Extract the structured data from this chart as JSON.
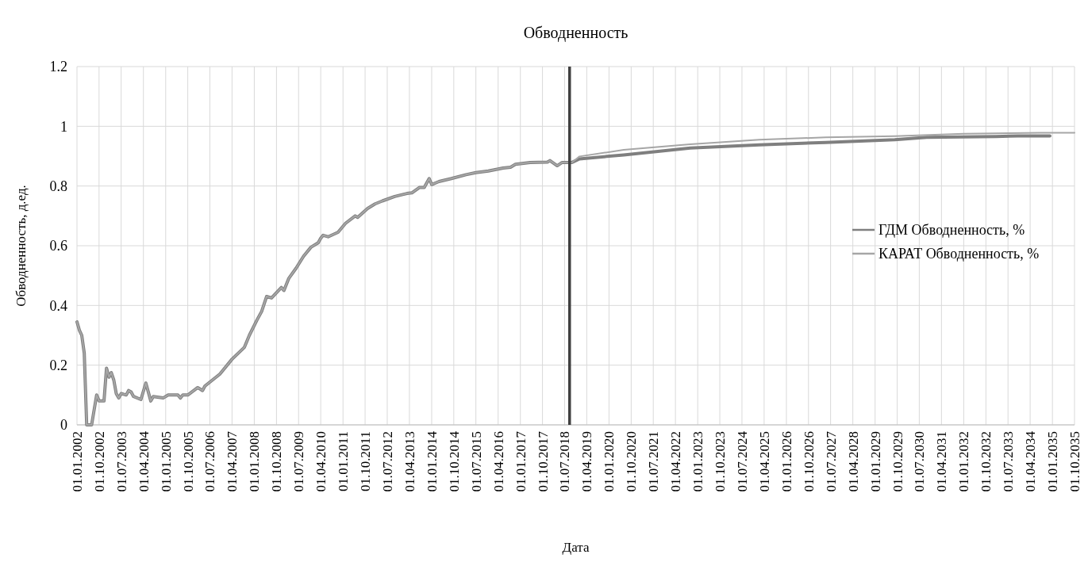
{
  "chart_data": {
    "type": "line",
    "title": "Обводненность",
    "xlabel": "Дата",
    "ylabel": "Обводненность, д.ед.",
    "xlim": [
      "2002-01",
      "2035-10"
    ],
    "xticks": [
      {
        "value": "2002-01",
        "label": "01.01.2002"
      },
      {
        "value": "2002-10",
        "label": "01.10.2002"
      },
      {
        "value": "2003-07",
        "label": "01.07.2003"
      },
      {
        "value": "2004-04",
        "label": "01.04.2004"
      },
      {
        "value": "2005-01",
        "label": "01.01.2005"
      },
      {
        "value": "2005-10",
        "label": "01.10.2005"
      },
      {
        "value": "2006-07",
        "label": "01.07.2006"
      },
      {
        "value": "2007-04",
        "label": "01.04.2007"
      },
      {
        "value": "2008-01",
        "label": "01.01.2008"
      },
      {
        "value": "2008-10",
        "label": "01.10.2008"
      },
      {
        "value": "2009-07",
        "label": "01.07.2009"
      },
      {
        "value": "2010-04",
        "label": "01.04.2010"
      },
      {
        "value": "2011-01",
        "label": "01.01.2011"
      },
      {
        "value": "2011-10",
        "label": "01.10.2011"
      },
      {
        "value": "2012-07",
        "label": "01.07.2012"
      },
      {
        "value": "2013-04",
        "label": "01.04.2013"
      },
      {
        "value": "2014-01",
        "label": "01.01.2014"
      },
      {
        "value": "2014-10",
        "label": "01.10.2014"
      },
      {
        "value": "2015-07",
        "label": "01.07.2015"
      },
      {
        "value": "2016-04",
        "label": "01.04.2016"
      },
      {
        "value": "2017-01",
        "label": "01.01.2017"
      },
      {
        "value": "2017-10",
        "label": "01.10.2017"
      },
      {
        "value": "2018-07",
        "label": "01.07.2018"
      },
      {
        "value": "2019-04",
        "label": "01.04.2019"
      },
      {
        "value": "2020-01",
        "label": "01.01.2020"
      },
      {
        "value": "2020-10",
        "label": "01.10.2020"
      },
      {
        "value": "2021-07",
        "label": "01.07.2021"
      },
      {
        "value": "2022-04",
        "label": "01.04.2022"
      },
      {
        "value": "2023-01",
        "label": "01.01.2023"
      },
      {
        "value": "2023-10",
        "label": "01.10.2023"
      },
      {
        "value": "2024-07",
        "label": "01.07.2024"
      },
      {
        "value": "2025-04",
        "label": "01.04.2025"
      },
      {
        "value": "2026-01",
        "label": "01.01.2026"
      },
      {
        "value": "2026-10",
        "label": "01.10.2026"
      },
      {
        "value": "2027-07",
        "label": "01.07.2027"
      },
      {
        "value": "2028-04",
        "label": "01.04.2028"
      },
      {
        "value": "2029-01",
        "label": "01.01.2029"
      },
      {
        "value": "2029-10",
        "label": "01.10.2029"
      },
      {
        "value": "2030-07",
        "label": "01.07.2030"
      },
      {
        "value": "2031-04",
        "label": "01.04.2031"
      },
      {
        "value": "2032-01",
        "label": "01.01.2032"
      },
      {
        "value": "2032-10",
        "label": "01.10.2032"
      },
      {
        "value": "2033-07",
        "label": "01.07.2033"
      },
      {
        "value": "2034-04",
        "label": "01.04.2034"
      },
      {
        "value": "2035-01",
        "label": "01.01.2035"
      },
      {
        "value": "2035-10",
        "label": "01.10.2035"
      }
    ],
    "ylim": [
      0,
      1.2
    ],
    "yticks": [
      0,
      0.2,
      0.4,
      0.6,
      0.8,
      1,
      1.2
    ],
    "grid": true,
    "legend": "right",
    "ref_lines": [
      {
        "axis": "x",
        "value": "2018-09",
        "color": "#404040"
      }
    ],
    "series": [
      {
        "name": "ГДМ Обводненность, %",
        "color": "#7f7f7f",
        "x": [
          "2002-01",
          "2002-02",
          "2002-03",
          "2002-04",
          "2002-05",
          "2002-07",
          "2002-09",
          "2002-10",
          "2002-12",
          "2003-01",
          "2003-02",
          "2003-03",
          "2003-04",
          "2003-05",
          "2003-06",
          "2003-07",
          "2003-09",
          "2003-10",
          "2003-11",
          "2003-12",
          "2004-03",
          "2004-05",
          "2004-07",
          "2004-08",
          "2004-12",
          "2005-02",
          "2005-06",
          "2005-07",
          "2005-08",
          "2005-10",
          "2006-02",
          "2006-04",
          "2006-05",
          "2006-11",
          "2007-04",
          "2007-09",
          "2007-11",
          "2008-02",
          "2008-04",
          "2008-06",
          "2008-08",
          "2008-12",
          "2009-01",
          "2009-03",
          "2009-06",
          "2009-09",
          "2009-12",
          "2010-03",
          "2010-04",
          "2010-05",
          "2010-07",
          "2010-11",
          "2011-02",
          "2011-06",
          "2011-07",
          "2011-11",
          "2012-02",
          "2012-05",
          "2012-10",
          "2013-03",
          "2013-05",
          "2013-08",
          "2013-10",
          "2013-12",
          "2014-01",
          "2014-04",
          "2014-09",
          "2015-03",
          "2015-07",
          "2015-12",
          "2016-06",
          "2016-09",
          "2016-11",
          "2017-05",
          "2017-12",
          "2018-01",
          "2018-04",
          "2018-06",
          "2018-10",
          "2019-01",
          "2020-07",
          "2022-10",
          "2025-02",
          "2027-05",
          "2029-09",
          "2030-10",
          "2033-02",
          "2033-11",
          "2034-12"
        ],
        "values": [
          0.345,
          0.316,
          0.3,
          0.24,
          0,
          0,
          0.1,
          0.08,
          0.08,
          0.19,
          0.16,
          0.175,
          0.15,
          0.105,
          0.09,
          0.105,
          0.1,
          0.115,
          0.11,
          0.095,
          0.085,
          0.14,
          0.08,
          0.095,
          0.09,
          0.1,
          0.1,
          0.09,
          0.1,
          0.1,
          0.125,
          0.115,
          0.13,
          0.17,
          0.22,
          0.26,
          0.3,
          0.35,
          0.38,
          0.43,
          0.425,
          0.46,
          0.45,
          0.49,
          0.525,
          0.565,
          0.595,
          0.61,
          0.625,
          0.635,
          0.63,
          0.645,
          0.675,
          0.7,
          0.695,
          0.725,
          0.74,
          0.75,
          0.765,
          0.775,
          0.777,
          0.795,
          0.795,
          0.825,
          0.805,
          0.815,
          0.825,
          0.838,
          0.845,
          0.85,
          0.86,
          0.863,
          0.873,
          0.879,
          0.88,
          0.885,
          0.868,
          0.879,
          0.879,
          0.891,
          0.904,
          0.927,
          0.938,
          0.946,
          0.955,
          0.963,
          0.966,
          0.968,
          0.968
        ]
      },
      {
        "name": "КАРАТ Обводненность, %",
        "color": "#a6a6a6",
        "x": [
          "2002-01",
          "2002-02",
          "2002-03",
          "2002-04",
          "2002-05",
          "2002-07",
          "2002-09",
          "2002-10",
          "2002-12",
          "2003-01",
          "2003-02",
          "2003-03",
          "2003-04",
          "2003-05",
          "2003-06",
          "2003-07",
          "2003-09",
          "2003-10",
          "2003-11",
          "2003-12",
          "2004-03",
          "2004-05",
          "2004-07",
          "2004-08",
          "2004-12",
          "2005-02",
          "2005-06",
          "2005-07",
          "2005-08",
          "2005-10",
          "2006-02",
          "2006-04",
          "2006-05",
          "2006-11",
          "2007-04",
          "2007-09",
          "2007-11",
          "2008-02",
          "2008-04",
          "2008-06",
          "2008-08",
          "2008-12",
          "2009-01",
          "2009-03",
          "2009-06",
          "2009-09",
          "2009-12",
          "2010-03",
          "2010-04",
          "2010-05",
          "2010-07",
          "2010-11",
          "2011-02",
          "2011-06",
          "2011-07",
          "2011-11",
          "2012-02",
          "2012-05",
          "2012-10",
          "2013-03",
          "2013-05",
          "2013-08",
          "2013-10",
          "2013-12",
          "2014-01",
          "2014-04",
          "2014-09",
          "2015-03",
          "2015-07",
          "2015-12",
          "2016-06",
          "2016-09",
          "2016-11",
          "2017-05",
          "2017-12",
          "2018-01",
          "2018-04",
          "2018-06",
          "2018-10",
          "2019-01",
          "2020-07",
          "2022-10",
          "2025-02",
          "2027-05",
          "2029-09",
          "2032-01",
          "2034-08",
          "2035-10"
        ],
        "values": [
          0.345,
          0.316,
          0.3,
          0.24,
          0,
          0,
          0.1,
          0.08,
          0.08,
          0.19,
          0.16,
          0.175,
          0.15,
          0.105,
          0.09,
          0.105,
          0.1,
          0.115,
          0.11,
          0.095,
          0.085,
          0.14,
          0.08,
          0.095,
          0.09,
          0.1,
          0.1,
          0.09,
          0.1,
          0.1,
          0.125,
          0.115,
          0.13,
          0.17,
          0.22,
          0.26,
          0.3,
          0.35,
          0.38,
          0.43,
          0.425,
          0.46,
          0.45,
          0.49,
          0.525,
          0.565,
          0.595,
          0.61,
          0.625,
          0.635,
          0.63,
          0.645,
          0.675,
          0.7,
          0.695,
          0.725,
          0.74,
          0.75,
          0.765,
          0.775,
          0.777,
          0.795,
          0.795,
          0.825,
          0.805,
          0.815,
          0.825,
          0.838,
          0.845,
          0.85,
          0.86,
          0.863,
          0.873,
          0.879,
          0.88,
          0.885,
          0.868,
          0.879,
          0.879,
          0.899,
          0.921,
          0.94,
          0.955,
          0.963,
          0.967,
          0.975,
          0.978,
          0.978
        ]
      }
    ]
  }
}
